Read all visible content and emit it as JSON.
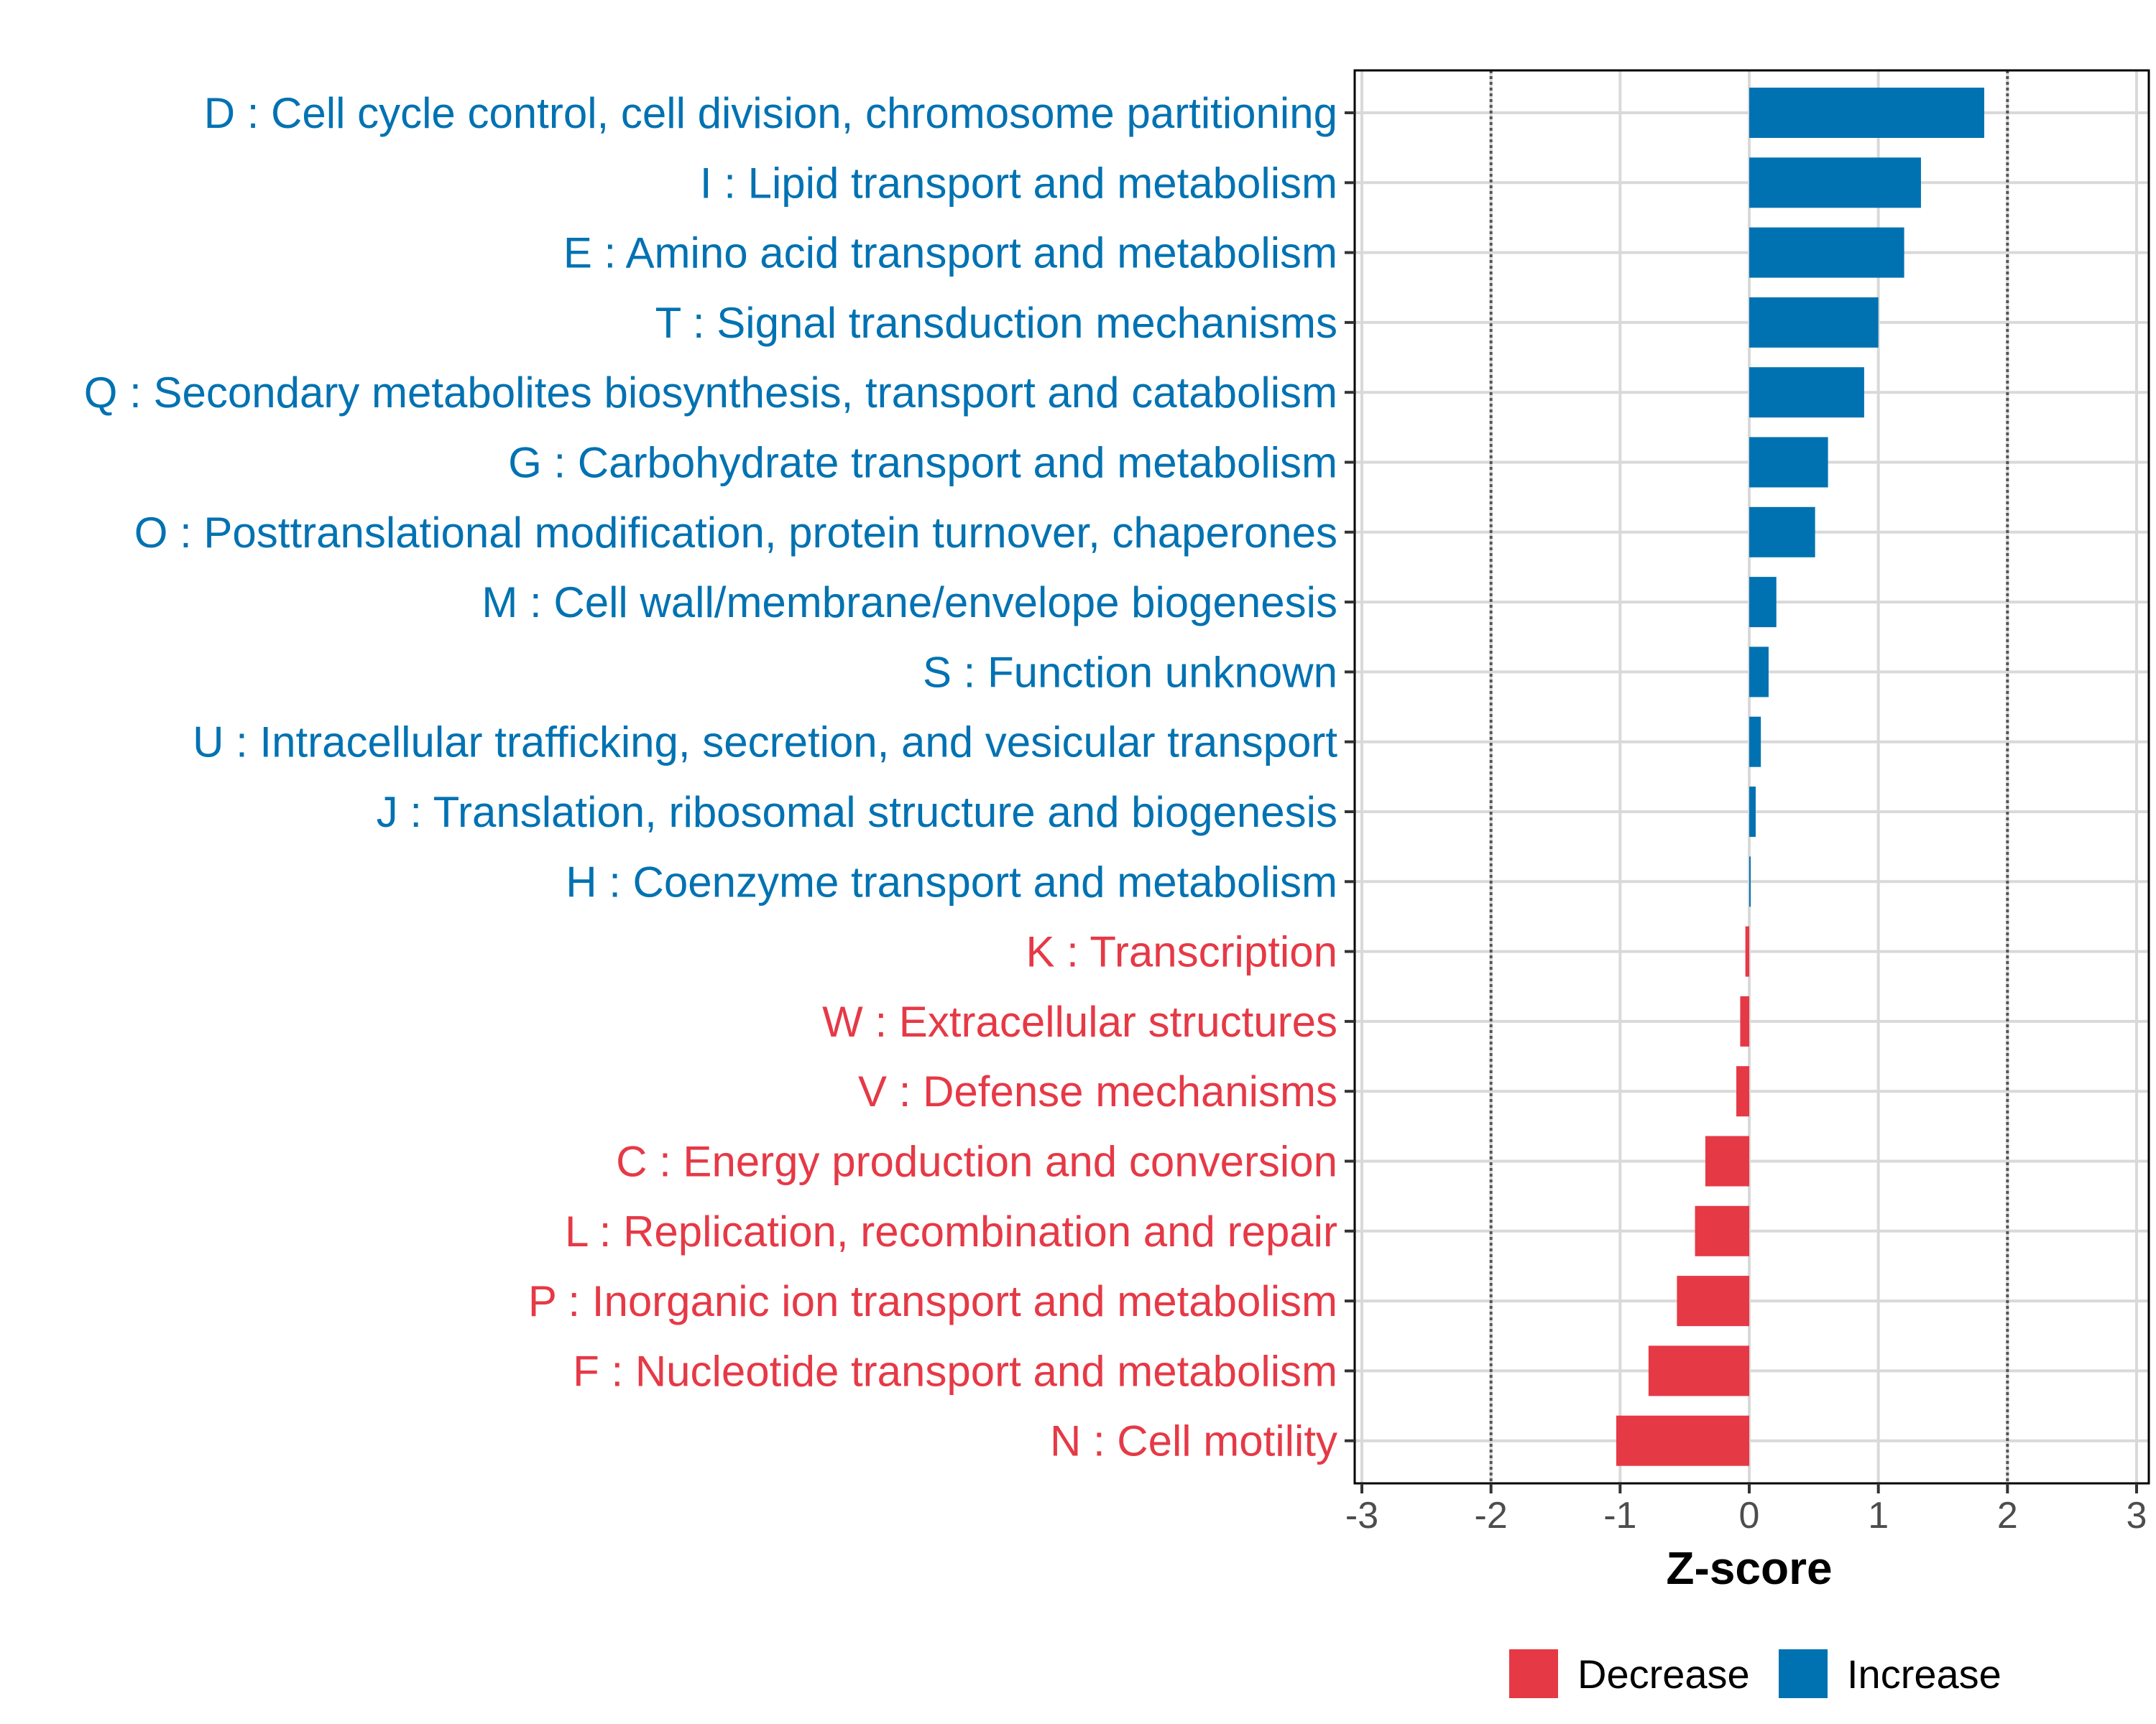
{
  "colors": {
    "increase": "#0072b2",
    "decrease": "#e63946",
    "grid": "#d9d9d9",
    "threshold_line": "#555555",
    "axis": "#000000"
  },
  "chart_data": {
    "type": "bar",
    "orientation": "horizontal",
    "title": "",
    "xlabel": "Z-score",
    "ylabel": "",
    "xlim": [
      -3,
      3
    ],
    "xticks": [
      -3,
      -2,
      -1,
      0,
      1,
      2,
      3
    ],
    "xtick_labels": [
      "-3",
      "-2",
      "-1",
      "0",
      "1",
      "2",
      "3"
    ],
    "threshold_lines": [
      -2,
      2
    ],
    "grid": true,
    "legend_position": "bottom",
    "legend": [
      {
        "name": "Decrease",
        "color": "#e63946"
      },
      {
        "name": "Increase",
        "color": "#0072b2"
      }
    ],
    "categories": [
      "D : Cell cycle control, cell division, chromosome partitioning",
      "I : Lipid transport and metabolism",
      "E : Amino acid transport and metabolism",
      "T : Signal transduction mechanisms",
      "Q : Secondary metabolites biosynthesis, transport and catabolism",
      "G : Carbohydrate transport and metabolism",
      "O : Posttranslational modification, protein turnover, chaperones",
      "M : Cell wall/membrane/envelope biogenesis",
      "S : Function unknown",
      "U : Intracellular trafficking, secretion, and vesicular transport",
      "J : Translation, ribosomal structure and biogenesis",
      "H : Coenzyme transport and metabolism",
      "K : Transcription",
      "W : Extracellular structures",
      "V : Defense mechanisms",
      "C : Energy production and conversion",
      "L : Replication, recombination and repair",
      "P : Inorganic ion transport and metabolism",
      "F : Nucleotide transport and metabolism",
      "N : Cell motility"
    ],
    "values": [
      1.82,
      1.33,
      1.2,
      1.0,
      0.89,
      0.61,
      0.51,
      0.21,
      0.15,
      0.09,
      0.05,
      0.01,
      -0.03,
      -0.07,
      -0.1,
      -0.34,
      -0.42,
      -0.56,
      -0.78,
      -1.03
    ],
    "groups": [
      "Increase",
      "Increase",
      "Increase",
      "Increase",
      "Increase",
      "Increase",
      "Increase",
      "Increase",
      "Increase",
      "Increase",
      "Increase",
      "Increase",
      "Decrease",
      "Decrease",
      "Decrease",
      "Decrease",
      "Decrease",
      "Decrease",
      "Decrease",
      "Decrease"
    ]
  }
}
